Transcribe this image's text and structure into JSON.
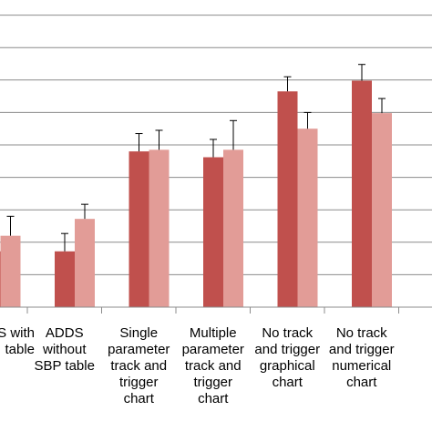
{
  "chart_data": {
    "type": "bar",
    "categories": [
      [
        "S with",
        "table"
      ],
      [
        "ADDS",
        "without",
        "SBP table"
      ],
      [
        "Single",
        "parameter",
        "track and",
        "trigger",
        "chart"
      ],
      [
        "Multiple",
        "parameter",
        "track and",
        "trigger",
        "chart"
      ],
      [
        "No track",
        "and trigger",
        "graphical",
        "chart"
      ],
      [
        "No track",
        "and trigger",
        "numerical",
        "chart"
      ]
    ],
    "series": [
      {
        "color": "#c0504d",
        "values": [
          1.72,
          1.72,
          4.8,
          4.62,
          6.65,
          6.98
        ],
        "errors": [
          0.8,
          0.55,
          0.55,
          0.55,
          0.45,
          0.5
        ]
      },
      {
        "color": "#e29c97",
        "values": [
          2.2,
          2.72,
          4.85,
          4.85,
          5.5,
          5.98
        ],
        "errors": [
          0.6,
          0.45,
          0.6,
          0.9,
          0.5,
          0.45
        ]
      }
    ],
    "ylim": [
      0,
      9.25
    ],
    "gridlines": [
      1,
      2,
      3,
      4,
      5,
      6,
      7,
      8,
      9
    ],
    "grid": true,
    "legend": "none",
    "error_bars": true
  }
}
